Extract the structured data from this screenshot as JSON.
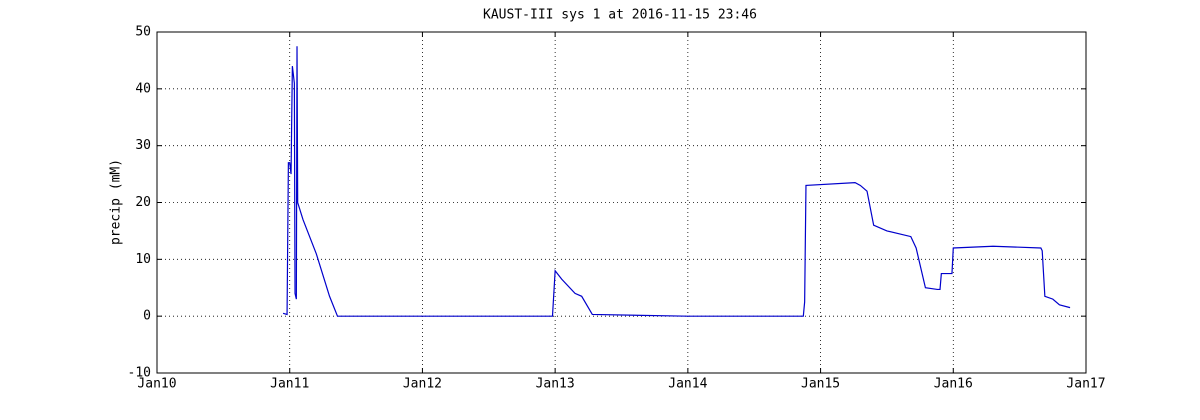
{
  "chart_data": {
    "type": "line",
    "title": "KAUST-III sys 1 at 2016-11-15 23:46",
    "y_label": "precip (mM)",
    "xlim": [
      10,
      17
    ],
    "ylim": [
      -10,
      50
    ],
    "grid": true,
    "xticks": [
      {
        "value": 10,
        "label": "Jan10"
      },
      {
        "value": 11,
        "label": "Jan11"
      },
      {
        "value": 12,
        "label": "Jan12"
      },
      {
        "value": 13,
        "label": "Jan13"
      },
      {
        "value": 14,
        "label": "Jan14"
      },
      {
        "value": 15,
        "label": "Jan15"
      },
      {
        "value": 16,
        "label": "Jan16"
      },
      {
        "value": 17,
        "label": "Jan17"
      }
    ],
    "yticks": [
      -10,
      0,
      10,
      20,
      30,
      40,
      50
    ],
    "series": [
      {
        "color": "#0000cc",
        "x": [
          10.95,
          10.98,
          10.99,
          11.0,
          11.01,
          11.02,
          11.025,
          11.035,
          11.04,
          11.05,
          11.055,
          11.06,
          11.1,
          11.2,
          11.3,
          11.36,
          12.97,
          12.98,
          13.0,
          13.05,
          13.15,
          13.2,
          13.28,
          14.0,
          14.87,
          14.88,
          14.89,
          15.26,
          15.3,
          15.35,
          15.4,
          15.5,
          15.68,
          15.72,
          15.79,
          15.88,
          15.9,
          15.91,
          15.99,
          16.0,
          16.3,
          16.66,
          16.67,
          16.69,
          16.75,
          16.8,
          16.88
        ],
        "values": [
          0.5,
          0.3,
          27,
          27,
          25,
          44,
          43,
          41,
          4,
          3,
          47.5,
          20,
          17,
          11,
          3.5,
          0,
          0,
          0,
          8,
          6.5,
          4,
          3.5,
          0.3,
          0,
          0,
          2.5,
          23,
          23.5,
          23,
          22,
          16,
          15,
          14,
          12,
          5,
          4.7,
          4.7,
          7.5,
          7.5,
          12,
          12.3,
          12,
          11.5,
          3.5,
          3,
          2,
          1.5
        ]
      }
    ]
  }
}
